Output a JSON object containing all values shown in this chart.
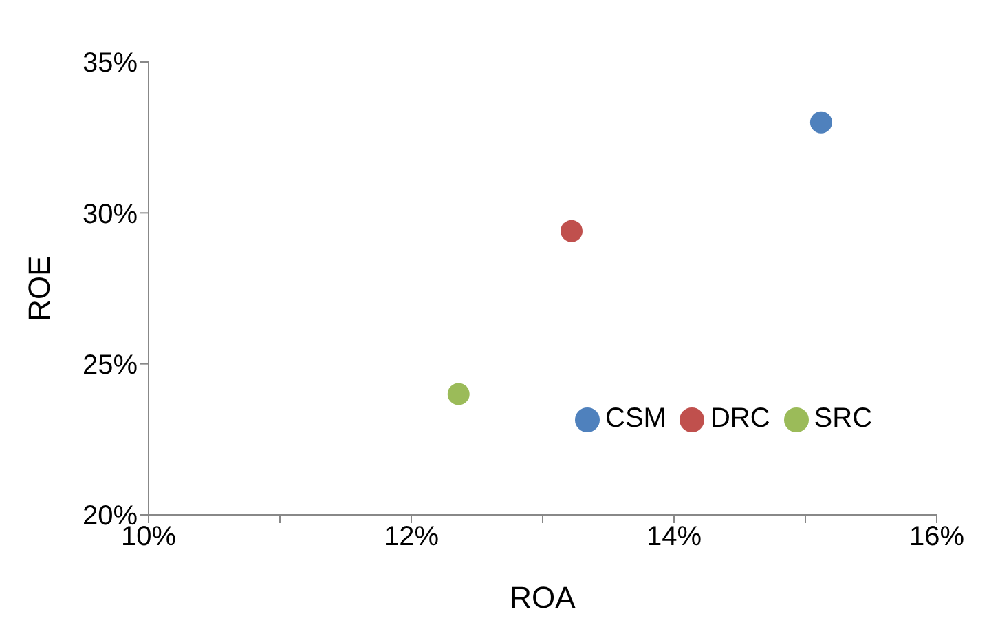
{
  "chart_data": {
    "type": "scatter",
    "xlabel": "ROA",
    "ylabel": "ROE",
    "xlim": [
      10,
      16
    ],
    "xticks": [
      {
        "value": 10,
        "label": "10%"
      },
      {
        "value": 11,
        "label": null
      },
      {
        "value": 12,
        "label": "12%"
      },
      {
        "value": 13,
        "label": null
      },
      {
        "value": 14,
        "label": "14%"
      },
      {
        "value": 15,
        "label": null
      },
      {
        "value": 16,
        "label": "16%"
      }
    ],
    "ylim": [
      20,
      35
    ],
    "yticks": [
      {
        "value": 20,
        "label": "20%"
      },
      {
        "value": 25,
        "label": "25%"
      },
      {
        "value": 30,
        "label": "30%"
      },
      {
        "value": 35,
        "label": "35%"
      }
    ],
    "grid": false,
    "legend": "bottom right",
    "marker": "circle",
    "series": [
      {
        "name": "CSM",
        "color": "#4f81bd",
        "x": [
          15.12
        ],
        "values": [
          33.0
        ]
      },
      {
        "name": "DRC",
        "color": "#c0504d",
        "x": [
          13.22
        ],
        "values": [
          29.4
        ]
      },
      {
        "name": "SRC",
        "color": "#9bbb59",
        "x": [
          12.36
        ],
        "values": [
          24.0
        ]
      }
    ]
  }
}
